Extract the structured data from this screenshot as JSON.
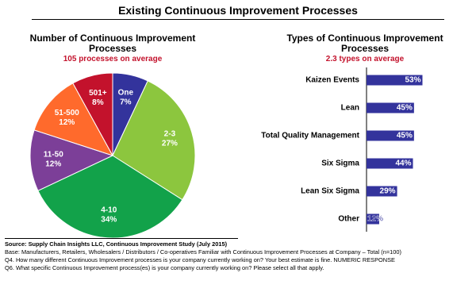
{
  "title": "Existing Continuous Improvement Processes",
  "chart_data": [
    {
      "type": "pie",
      "title": "Number of Continuous Improvement Processes",
      "subtitle": "105 processes on average",
      "categories": [
        "One",
        "2-3",
        "4-10",
        "11-50",
        "51-500",
        "501+"
      ],
      "values": [
        7,
        27,
        34,
        12,
        12,
        8
      ],
      "value_labels": [
        "7%",
        "27%",
        "34%",
        "12%",
        "12%",
        "8%"
      ],
      "colors": [
        "#33339c",
        "#8cc63e",
        "#12a24a",
        "#7c3f98",
        "#ff6a2c",
        "#c3122c"
      ]
    },
    {
      "type": "hbar",
      "title": "Types of Continuous Improvement Processes",
      "subtitle": "2.3 types on average",
      "categories": [
        "Kaizen Events",
        "Lean",
        "Total Quality Management",
        "Six Sigma",
        "Lean Six Sigma",
        "Other"
      ],
      "values": [
        53,
        45,
        45,
        44,
        29,
        12
      ],
      "value_labels": [
        "53%",
        "45%",
        "45%",
        "44%",
        "29%",
        "12%"
      ],
      "color": "#33339c"
    }
  ],
  "notes": [
    "Source:  Supply Chain Insights LLC, Continuous Improvement Study (July 2015)",
    "Base:  Manufacturers, Retailers, Wholesalers / Distributors / Co-operatives Familiar with Continuous Improvement Processes at Company – Total (n=100)",
    "Q4. How many different Continuous Improvement processes is your company currently working on?  Your best estimate is fine. NUMERIC RESPONSE",
    "Q6. What specific Continuous Improvement process(es) is your company currently working on? Please select all that apply."
  ]
}
